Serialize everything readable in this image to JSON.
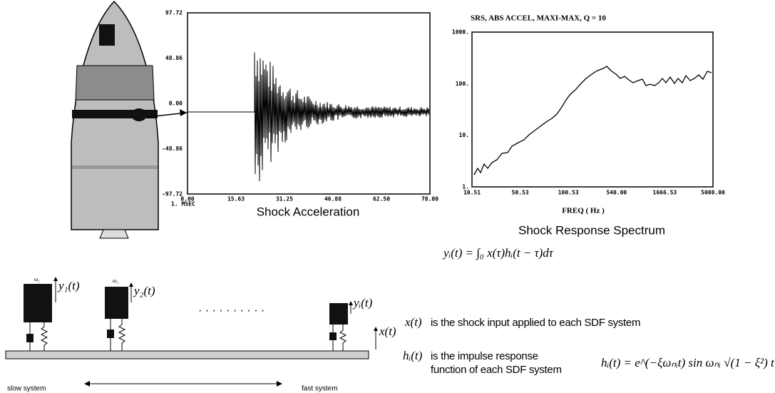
{
  "shock_acceleration": {
    "caption": "Shock Acceleration",
    "yticks": [
      "97.72",
      "48.86",
      "0.00",
      "-48.86",
      "-97.72"
    ],
    "xticks": [
      "0.00",
      "15.63",
      "31.25",
      "46.88",
      "62.50",
      "78.00"
    ],
    "x_unit": "1. MSEC"
  },
  "srs": {
    "title": "SRS,  ABS ACCEL,  MAXI-MAX, Q = 10",
    "caption": "Shock Response Spectrum",
    "xlabel": "FREQ ( Hz )",
    "yticks": [
      "1000.",
      "100.",
      "10.",
      "1."
    ],
    "xticks": [
      "10.51",
      "50.53",
      "100.53",
      "540.00",
      "1666.53",
      "5000.00"
    ]
  },
  "model": {
    "masses": [
      {
        "label": "ω₁",
        "response": "y₁(t)"
      },
      {
        "label": "ω₂",
        "response": "y₂(t)"
      },
      {
        "response": "yᵢ(t)"
      }
    ],
    "ellipsis": "· · · · · · · · · ·",
    "input": "x(t)",
    "slow": "slow   system",
    "fast": "fast   system"
  },
  "equations": {
    "response": "yᵢ(t) = ∫₀ x(τ)hᵢ(t − τ)dτ",
    "x_symbol": "x(t)",
    "x_text": "is the shock input applied to each SDF system",
    "h_symbol": "hᵢ(t)",
    "h_text_1": "is the impulse response",
    "h_text_2": "function of each SDF system",
    "impulse": "hᵢ(t) = e^(−ξωₙᵢt) sin ωₙᵢ √(1 − ξ²) t"
  }
}
